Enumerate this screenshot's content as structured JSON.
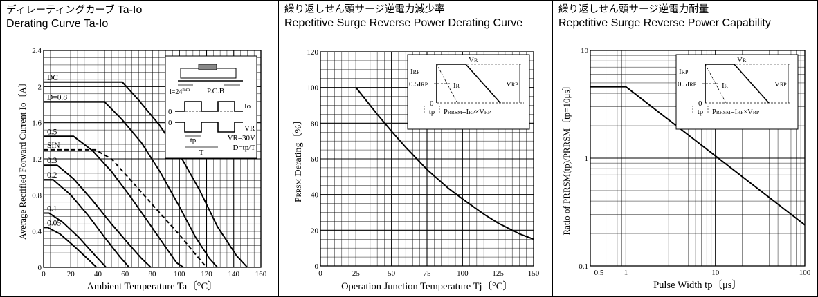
{
  "chart_data": [
    {
      "type": "line",
      "title_jp": "ディレーティングカーブ",
      "title_jp_suffix": "Ta-Io",
      "title": "Derating Curve Ta-Io",
      "xlabel": "Ambient Temperature  Ta〔°C〕",
      "ylabel": "Average Rectified Forward Current  Io〔A〕",
      "xlim": [
        0,
        160
      ],
      "ylim": [
        0,
        2.4
      ],
      "x_ticks": [
        0,
        20,
        40,
        60,
        80,
        100,
        120,
        140,
        160
      ],
      "y_ticks": [
        0,
        0.4,
        0.8,
        1.2,
        1.6,
        2.0,
        2.4
      ],
      "x_tick_labels": [
        "0",
        "20",
        "40",
        "60",
        "80",
        "100",
        "120",
        "140",
        "160"
      ],
      "y_tick_labels": [
        "0",
        "0.4",
        "0.8",
        "1.2",
        "1.6",
        "2",
        "2.4"
      ],
      "grid": true,
      "series": [
        {
          "name": "DC",
          "dashed": false,
          "points": [
            [
              0,
              2.05
            ],
            [
              58,
              2.05
            ],
            [
              70,
              1.85
            ],
            [
              85,
              1.58
            ],
            [
              100,
              1.25
            ],
            [
              115,
              0.85
            ],
            [
              128,
              0.45
            ],
            [
              142,
              0.13
            ],
            [
              150,
              0
            ]
          ]
        },
        {
          "name": "D=0.8",
          "dashed": false,
          "points": [
            [
              0,
              1.83
            ],
            [
              45,
              1.83
            ],
            [
              58,
              1.63
            ],
            [
              72,
              1.38
            ],
            [
              86,
              1.05
            ],
            [
              100,
              0.67
            ],
            [
              112,
              0.33
            ],
            [
              122,
              0.1
            ],
            [
              128,
              0
            ]
          ]
        },
        {
          "name": "0.5",
          "dashed": false,
          "points": [
            [
              0,
              1.45
            ],
            [
              22,
              1.45
            ],
            [
              36,
              1.29
            ],
            [
              50,
              1.06
            ],
            [
              64,
              0.78
            ],
            [
              78,
              0.48
            ],
            [
              90,
              0.22
            ],
            [
              98,
              0.05
            ],
            [
              103,
              0
            ]
          ]
        },
        {
          "name": "SIN",
          "dashed": true,
          "points": [
            [
              0,
              1.3
            ],
            [
              38,
              1.3
            ],
            [
              50,
              1.2
            ],
            [
              62,
              1.0
            ],
            [
              75,
              0.78
            ],
            [
              88,
              0.56
            ],
            [
              100,
              0.36
            ],
            [
              111,
              0.16
            ],
            [
              120,
              0
            ]
          ]
        },
        {
          "name": "0.3",
          "dashed": false,
          "points": [
            [
              0,
              1.13
            ],
            [
              10,
              1.13
            ],
            [
              22,
              0.98
            ],
            [
              36,
              0.74
            ],
            [
              50,
              0.48
            ],
            [
              62,
              0.27
            ],
            [
              72,
              0.1
            ],
            [
              79,
              0
            ]
          ]
        },
        {
          "name": "0.2",
          "dashed": false,
          "points": [
            [
              0,
              0.97
            ],
            [
              7,
              0.97
            ],
            [
              20,
              0.8
            ],
            [
              33,
              0.57
            ],
            [
              45,
              0.33
            ],
            [
              56,
              0.12
            ],
            [
              63,
              0
            ]
          ]
        },
        {
          "name": "0.1",
          "dashed": false,
          "points": [
            [
              0,
              0.6
            ],
            [
              4,
              0.6
            ],
            [
              14,
              0.5
            ],
            [
              26,
              0.33
            ],
            [
              38,
              0.13
            ],
            [
              46,
              0
            ]
          ]
        },
        {
          "name": "0.05",
          "dashed": false,
          "points": [
            [
              0,
              0.44
            ],
            [
              3,
              0.44
            ],
            [
              12,
              0.37
            ],
            [
              22,
              0.24
            ],
            [
              32,
              0.1
            ],
            [
              39,
              0
            ]
          ]
        }
      ],
      "inset": {
        "pcb_label": "P.C.B",
        "length_label": "l=24",
        "length_unit": "mm",
        "io_label": "Io",
        "vr_label": "VR",
        "zero_label": "0",
        "tp_label": "tp",
        "t_label": "T",
        "vr_value": "VR=30V",
        "duty": "D=tp/T"
      }
    },
    {
      "type": "line",
      "title_jp": "繰り返しせん頭サージ逆電力減少率",
      "title": "Repetitive Surge Reverse Power Derating Curve",
      "xlabel": "Operation Junction Temperature  Tj〔°C〕",
      "ylabel_main": "P",
      "ylabel_sub": "RRSM",
      "ylabel_rest": " Derating〔%〕",
      "xlim": [
        0,
        150
      ],
      "ylim": [
        0,
        120
      ],
      "x_ticks": [
        0,
        25,
        50,
        75,
        100,
        125,
        150
      ],
      "y_ticks": [
        0,
        20,
        40,
        60,
        80,
        100,
        120
      ],
      "x_tick_labels": [
        "0",
        "25",
        "50",
        "75",
        "100",
        "125",
        "150"
      ],
      "y_tick_labels": [
        "0",
        "20",
        "40",
        "60",
        "80",
        "100",
        "120"
      ],
      "grid": true,
      "series": [
        {
          "dashed": false,
          "points": [
            [
              25,
              100
            ],
            [
              40,
              85
            ],
            [
              50,
              75.5
            ],
            [
              60,
              66.5
            ],
            [
              75,
              54
            ],
            [
              90,
              43.5
            ],
            [
              100,
              37.5
            ],
            [
              115,
              29
            ],
            [
              125,
              24
            ],
            [
              140,
              18
            ],
            [
              150,
              15
            ]
          ]
        }
      ],
      "inset": {
        "vr_label": "VR",
        "irp_label": "IRP",
        "half_irp_label": "0.5IRP",
        "ir_label": "IR",
        "vrp_label": "VRP",
        "zero_label": "0",
        "tp_label": "tp",
        "formula": "PRRSM=IRP×VRP"
      }
    },
    {
      "type": "line",
      "title_jp": "繰り返しせん頭サージ逆電力耐量",
      "title": "Repetitive Surge Reverse Power Capability",
      "xlabel": "Pulse Width  tp〔μs〕",
      "ylabel": "Ratio of PRRSM(tp)/PRRSM〔tp=10μs〕",
      "x_scale": "log",
      "y_scale": "log",
      "xlim": [
        0.4,
        100
      ],
      "ylim": [
        0.1,
        10
      ],
      "x_tick_labels": [
        "0.5",
        "1",
        "10",
        "100"
      ],
      "x_ticks": [
        0.5,
        1,
        10,
        100
      ],
      "y_tick_labels": [
        "0.1",
        "1",
        "10"
      ],
      "y_ticks": [
        0.1,
        1,
        10
      ],
      "grid": true,
      "series": [
        {
          "dashed": false,
          "points": [
            [
              0.4,
              4.6
            ],
            [
              1,
              4.6
            ],
            [
              10,
              1.05
            ],
            [
              100,
              0.24
            ]
          ]
        }
      ],
      "inset": {
        "vr_label": "VR",
        "irp_label": "IRP",
        "half_irp_label": "0.5IRP",
        "ir_label": "IR",
        "vrp_label": "VRP",
        "zero_label": "0",
        "tp_label": "tp",
        "formula": "PRRSM=IRP×VRP"
      }
    }
  ]
}
